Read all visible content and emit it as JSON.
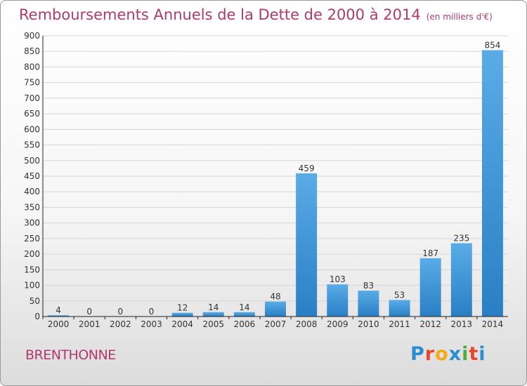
{
  "title": "Remboursements Annuels de la Dette de 2000 à 2014",
  "unit": "(en milliers d'€)",
  "commune": "BRENTHONNE",
  "logo": {
    "letters": [
      "P",
      "r",
      "o",
      "x",
      "i",
      "t",
      "i"
    ],
    "colors": [
      "#2a8fd1",
      "#e8462a",
      "#f5a81c",
      "#2a8fd1",
      "#4caf3c",
      "#e8462a",
      "#2a8fd1"
    ]
  },
  "colors": {
    "bar_top": "#5aace6",
    "bar_bottom": "#2a7fc4",
    "grid": "#d6d6d6",
    "axis": "#222222"
  },
  "chart_data": {
    "type": "bar",
    "title": "Remboursements Annuels de la Dette de 2000 à 2014",
    "categories": [
      "2000",
      "2001",
      "2002",
      "2003",
      "2004",
      "2005",
      "2006",
      "2007",
      "2008",
      "2009",
      "2010",
      "2011",
      "2012",
      "2013",
      "2014"
    ],
    "values": [
      4,
      0,
      0,
      0,
      12,
      14,
      14,
      48,
      459,
      103,
      83,
      53,
      187,
      235,
      854
    ],
    "ylim": [
      0,
      900
    ],
    "yticks": [
      0,
      50,
      100,
      150,
      200,
      250,
      300,
      350,
      400,
      450,
      500,
      550,
      600,
      650,
      700,
      750,
      800,
      850,
      900
    ],
    "grid": true,
    "data_labels": true
  }
}
